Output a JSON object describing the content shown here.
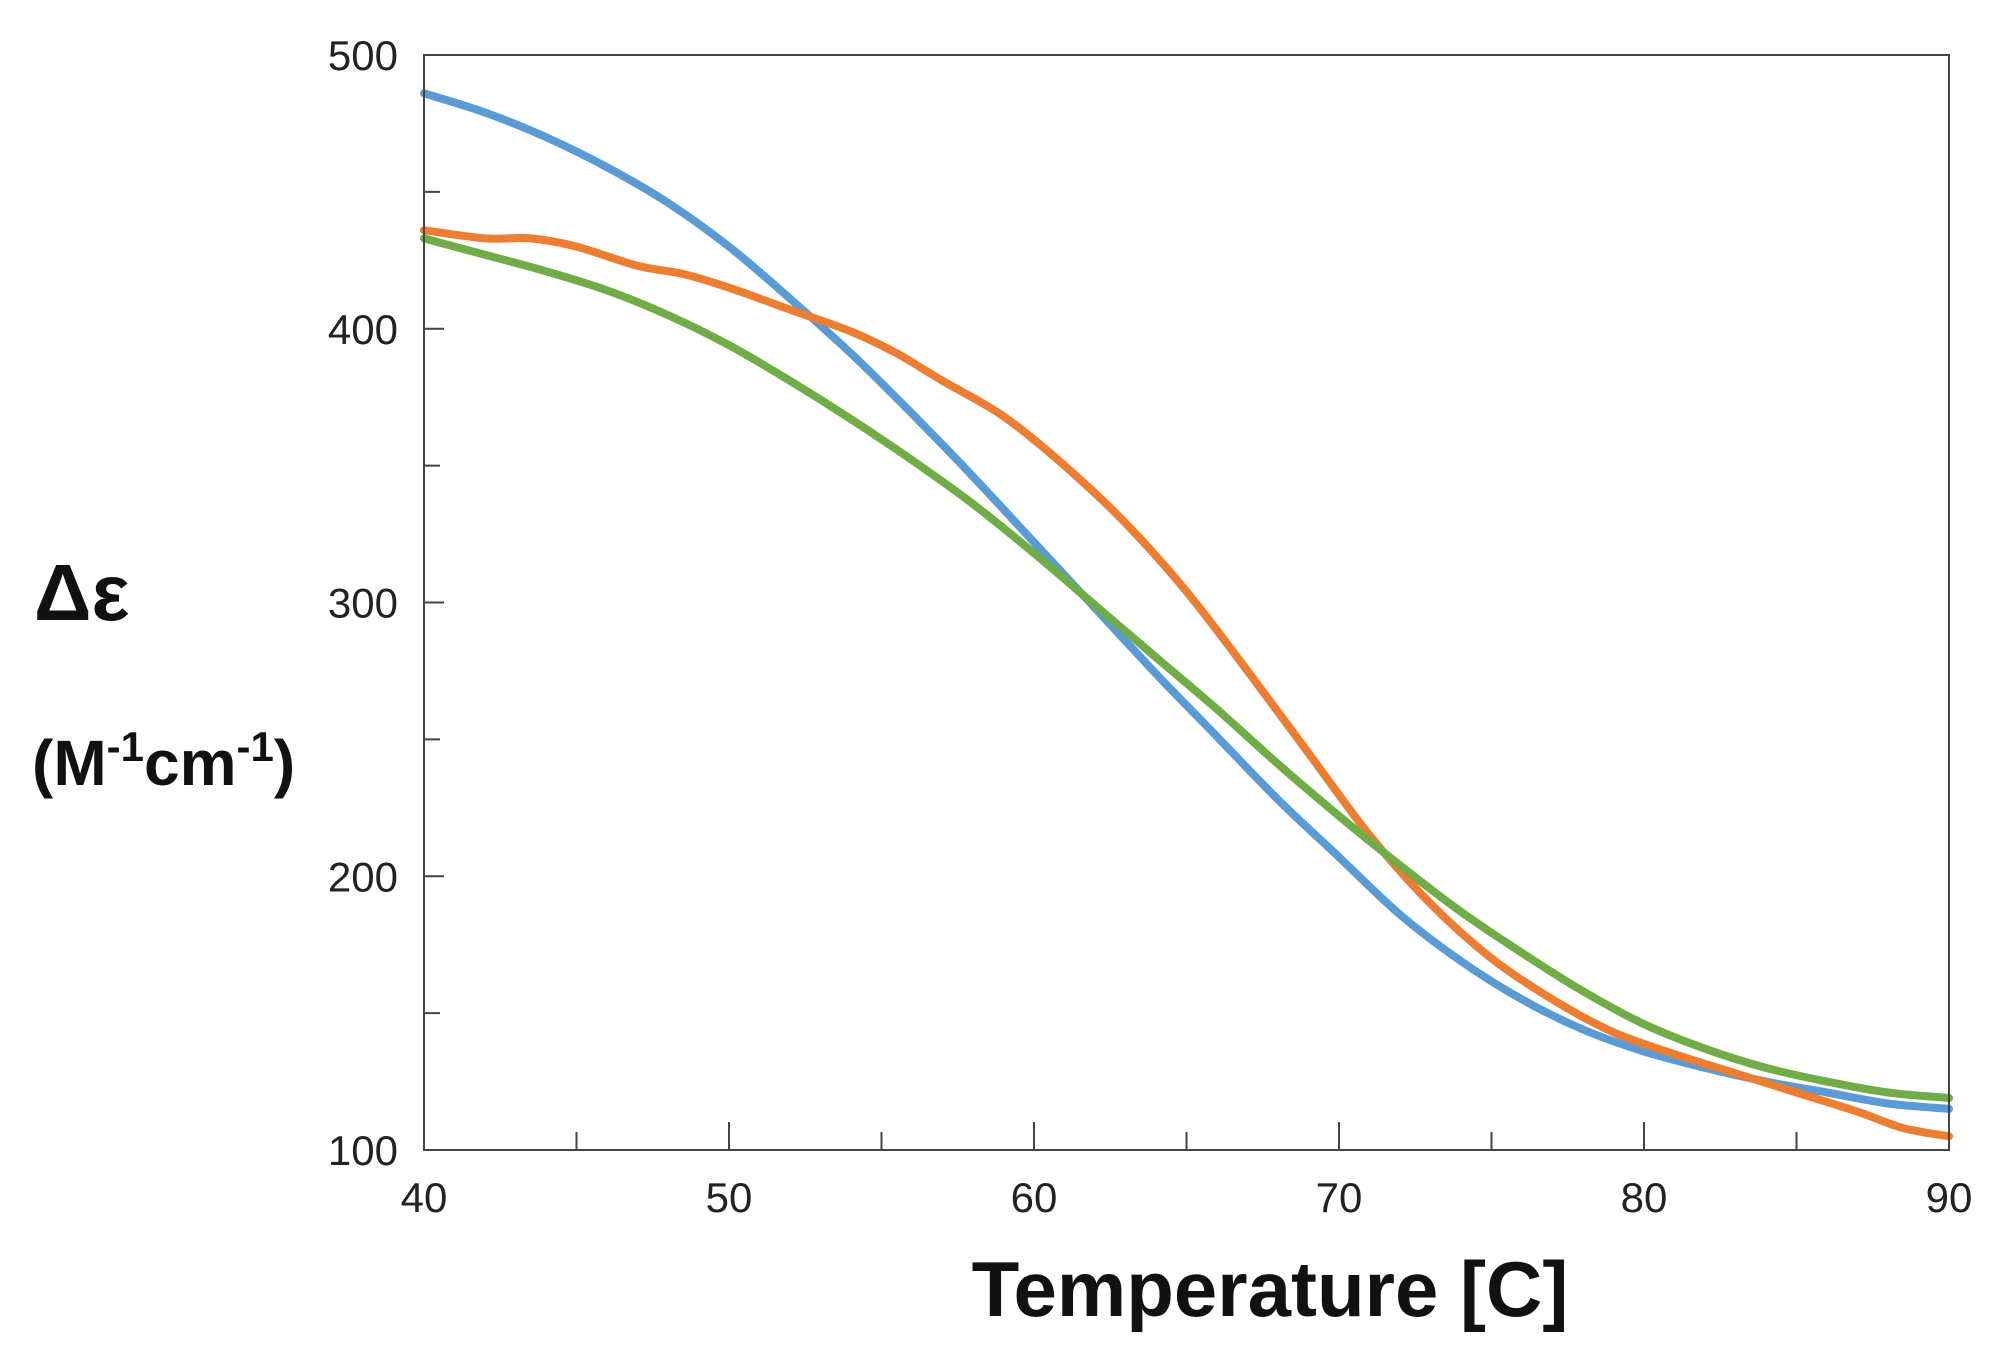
{
  "chart_data": {
    "type": "line",
    "title": "",
    "xlabel": "Temperature [C]",
    "ylabel_line1": "Δε",
    "ylabel_line2_prefix": "(M",
    "ylabel_line2_sup1": "-1",
    "ylabel_line2_mid": "cm",
    "ylabel_line2_sup2": "-1",
    "ylabel_line2_suffix": ")",
    "xlim": [
      40,
      90
    ],
    "ylim": [
      100,
      500
    ],
    "x_major_ticks": [
      40,
      50,
      60,
      70,
      80,
      90
    ],
    "x_tick_labels": [
      "40",
      "50",
      "60",
      "70",
      "80",
      "90"
    ],
    "x_minor_ticks": [
      45,
      55,
      65,
      75,
      85
    ],
    "y_major_ticks": [
      100,
      200,
      300,
      400,
      500
    ],
    "y_tick_labels": [
      "100",
      "200",
      "300",
      "400",
      "500"
    ],
    "y_minor_ticks": [
      150,
      250,
      350,
      450
    ],
    "grid": false,
    "series": [
      {
        "name": "blue",
        "color": "#5b9bd5",
        "x": [
          40,
          42,
          44,
          46,
          48,
          50,
          52,
          54,
          56,
          58,
          60,
          62,
          64,
          66,
          68,
          70,
          72,
          74,
          76,
          78,
          80,
          82,
          84,
          86,
          88,
          90
        ],
        "y": [
          486,
          479,
          470,
          459,
          446,
          430,
          411,
          391,
          369,
          346,
          322,
          298,
          274,
          251,
          228,
          207,
          186,
          169,
          155,
          144,
          136,
          130,
          125,
          121,
          117,
          115
        ]
      },
      {
        "name": "orange",
        "color": "#ed7d31",
        "x": [
          40,
          42,
          43.5,
          45,
          47,
          48.5,
          50,
          52,
          54,
          55.5,
          57,
          59,
          61,
          63,
          65,
          67,
          69,
          71,
          73,
          75,
          77,
          79,
          81,
          83,
          85,
          87,
          88.5,
          90
        ],
        "y": [
          436,
          433,
          433,
          430,
          423,
          420,
          415,
          407,
          399,
          391,
          381,
          368,
          350,
          329,
          304,
          275,
          245,
          215,
          190,
          170,
          155,
          143,
          135,
          128,
          121,
          114,
          108,
          105
        ]
      },
      {
        "name": "green",
        "color": "#70ad47",
        "x": [
          40,
          42,
          44,
          46,
          48,
          50,
          52,
          54,
          56,
          58,
          60,
          62,
          64,
          66,
          68,
          70,
          72,
          74,
          76,
          78,
          80,
          82,
          84,
          86,
          88,
          90
        ],
        "y": [
          433,
          427,
          421,
          414,
          405,
          394,
          381,
          367,
          352,
          336,
          318,
          299,
          280,
          261,
          241,
          222,
          204,
          187,
          172,
          158,
          146,
          137,
          130,
          125,
          121,
          119
        ]
      }
    ]
  }
}
